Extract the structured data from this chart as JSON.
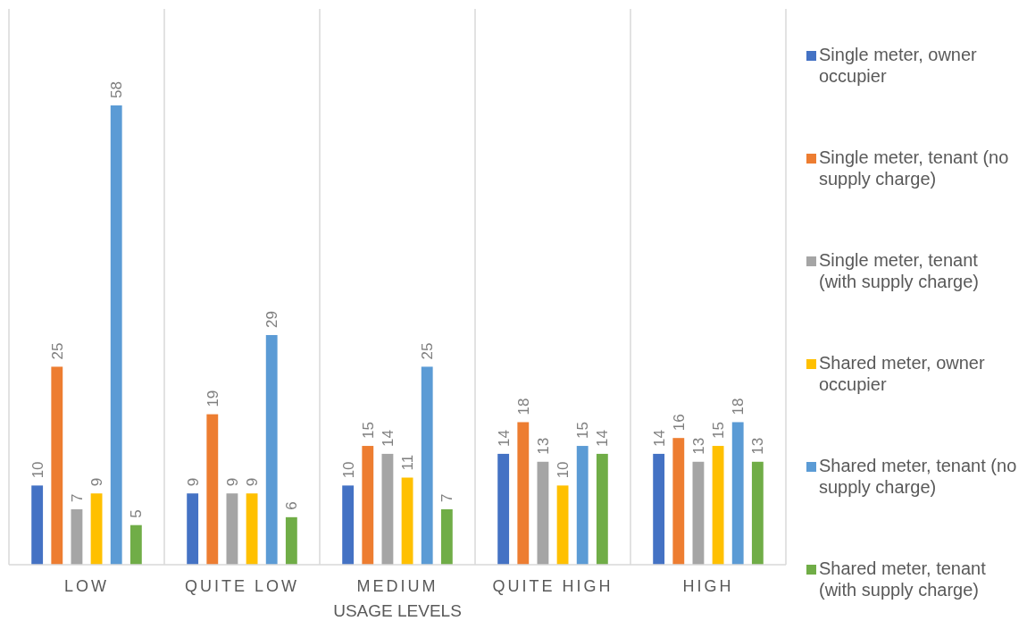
{
  "chart_data": {
    "type": "bar",
    "xlabel": "USAGE LEVELS",
    "categories": [
      "LOW",
      "QUITE LOW",
      "MEDIUM",
      "QUITE HIGH",
      "HIGH"
    ],
    "series": [
      {
        "name": "Single meter, owner occupier",
        "color": "#4472c4",
        "values": [
          10,
          9,
          10,
          14,
          14
        ]
      },
      {
        "name": "Single meter, tenant (no supply charge)",
        "color": "#ed7d31",
        "values": [
          25,
          19,
          15,
          18,
          16
        ]
      },
      {
        "name": "Single meter, tenant (with supply charge)",
        "color": "#a5a5a5",
        "values": [
          7,
          9,
          14,
          13,
          13
        ]
      },
      {
        "name": "Shared meter, owner occupier",
        "color": "#ffc000",
        "values": [
          9,
          9,
          11,
          10,
          15
        ]
      },
      {
        "name": "Shared meter, tenant (no supply charge)",
        "color": "#5b9bd5",
        "values": [
          58,
          29,
          25,
          15,
          18
        ]
      },
      {
        "name": "Shared meter, tenant (with supply charge)",
        "color": "#70ad47",
        "values": [
          5,
          6,
          7,
          14,
          13
        ]
      }
    ],
    "data_labels": true,
    "grid": "x",
    "legend": "right"
  }
}
